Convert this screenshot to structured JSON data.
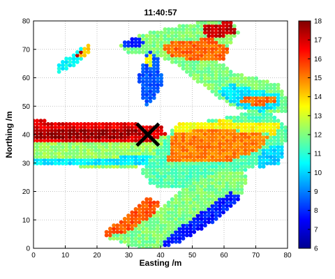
{
  "chart_data": {
    "type": "scatter",
    "title": "11:40:57",
    "xlabel": "Easting /m",
    "ylabel": "Northing /m",
    "xlim": [
      0,
      80
    ],
    "ylim": [
      0,
      80
    ],
    "xticks": [
      "0",
      "10",
      "20",
      "30",
      "40",
      "50",
      "60",
      "70",
      "80"
    ],
    "yticks": [
      "0",
      "10",
      "20",
      "30",
      "40",
      "50",
      "60",
      "70",
      "80"
    ],
    "grid": true,
    "colorbar": {
      "colormap": "jet",
      "range": [
        6,
        18
      ],
      "ticks": [
        "6",
        "7",
        "8",
        "9",
        "10",
        "11",
        "12",
        "13",
        "14",
        "15",
        "16",
        "17",
        "18"
      ]
    },
    "marker": {
      "symbol": "X",
      "x": 36,
      "y": 40,
      "color": "#000000"
    },
    "regions": [
      {
        "name": "west-channel",
        "poly": [
          [
            0,
            29.5
          ],
          [
            29,
            28
          ],
          [
            38,
            30
          ],
          [
            44,
            36
          ],
          [
            42,
            41
          ],
          [
            35,
            43
          ],
          [
            0,
            45
          ]
        ],
        "value": 12.3
      },
      {
        "name": "west-channel-red-band",
        "poly": [
          [
            0,
            37.5
          ],
          [
            36,
            37
          ],
          [
            42,
            40
          ],
          [
            40,
            43
          ],
          [
            30,
            44
          ],
          [
            0,
            45
          ]
        ],
        "value": 16.8
      },
      {
        "name": "west-channel-darkred-core",
        "poly": [
          [
            0,
            39
          ],
          [
            30,
            39
          ],
          [
            36,
            40
          ],
          [
            36,
            41
          ],
          [
            28,
            42
          ],
          [
            0,
            42
          ]
        ],
        "value": 17.7
      },
      {
        "name": "west-channel-lower-edge",
        "poly": [
          [
            0,
            29.5
          ],
          [
            38,
            29
          ],
          [
            40,
            32
          ],
          [
            38,
            32.5
          ],
          [
            0,
            31.5
          ]
        ],
        "value": 10.3
      },
      {
        "name": "junction-body",
        "poly": [
          [
            34,
            27
          ],
          [
            37,
            22
          ],
          [
            47,
            21
          ],
          [
            60,
            23
          ],
          [
            68,
            28
          ],
          [
            72,
            30
          ],
          [
            79,
            34
          ],
          [
            80,
            42
          ],
          [
            76,
            47
          ],
          [
            72,
            49
          ],
          [
            60,
            46
          ],
          [
            50,
            44
          ],
          [
            44,
            42
          ],
          [
            40,
            36
          ]
        ],
        "value": 11.5
      },
      {
        "name": "junction-orange",
        "poly": [
          [
            42,
            30
          ],
          [
            60,
            30
          ],
          [
            72,
            35
          ],
          [
            74,
            40
          ],
          [
            60,
            42
          ],
          [
            44,
            41
          ]
        ],
        "value": 15.0
      },
      {
        "name": "junction-yellow-strip",
        "poly": [
          [
            44,
            41
          ],
          [
            60,
            42
          ],
          [
            76,
            40
          ],
          [
            78,
            44
          ],
          [
            60,
            45
          ],
          [
            45,
            44
          ]
        ],
        "value": 13.5
      },
      {
        "name": "east-cyan-patch",
        "poly": [
          [
            70,
            28
          ],
          [
            78,
            30
          ],
          [
            79,
            37
          ],
          [
            72,
            35
          ]
        ],
        "value": 10.0
      },
      {
        "name": "south-arm",
        "poly": [
          [
            22,
            4
          ],
          [
            33,
            0
          ],
          [
            40,
            0
          ],
          [
            58,
            10
          ],
          [
            66,
            20
          ],
          [
            68,
            26
          ],
          [
            60,
            28
          ],
          [
            48,
            22
          ],
          [
            40,
            14
          ],
          [
            30,
            8
          ]
        ],
        "value": 12.0
      },
      {
        "name": "south-arm-outer-orange",
        "poly": [
          [
            22,
            4
          ],
          [
            30,
            6
          ],
          [
            38,
            12
          ],
          [
            40,
            16
          ],
          [
            36,
            18
          ],
          [
            28,
            10
          ],
          [
            22,
            6
          ]
        ],
        "value": 15.5
      },
      {
        "name": "south-arm-inner-blue",
        "poly": [
          [
            40,
            0
          ],
          [
            46,
            2
          ],
          [
            58,
            10
          ],
          [
            66,
            18
          ],
          [
            62,
            20
          ],
          [
            52,
            12
          ],
          [
            42,
            4
          ]
        ],
        "value": 7.8
      },
      {
        "name": "north-arm",
        "poly": [
          [
            27,
            72
          ],
          [
            36,
            76
          ],
          [
            54,
            80
          ],
          [
            62,
            80
          ],
          [
            65,
            76
          ],
          [
            62,
            72
          ],
          [
            58,
            66
          ],
          [
            63,
            62
          ],
          [
            70,
            60
          ],
          [
            77,
            58
          ],
          [
            80,
            52
          ],
          [
            80,
            48
          ],
          [
            75,
            48
          ],
          [
            68,
            48
          ],
          [
            62,
            50
          ],
          [
            56,
            55
          ],
          [
            50,
            60
          ],
          [
            46,
            64
          ],
          [
            38,
            68
          ],
          [
            30,
            68
          ]
        ],
        "value": 12.0
      },
      {
        "name": "north-arm-red-tip",
        "poly": [
          [
            53,
            78
          ],
          [
            62,
            80
          ],
          [
            64,
            76
          ],
          [
            58,
            74
          ],
          [
            54,
            75
          ]
        ],
        "value": 17.2
      },
      {
        "name": "north-arm-orange-ridge",
        "poly": [
          [
            40,
            72
          ],
          [
            56,
            74
          ],
          [
            62,
            70
          ],
          [
            60,
            66
          ],
          [
            50,
            66
          ],
          [
            42,
            68
          ]
        ],
        "value": 15.3
      },
      {
        "name": "north-arm-blue-edge",
        "poly": [
          [
            27,
            72
          ],
          [
            32,
            74
          ],
          [
            36,
            73
          ],
          [
            34,
            71
          ],
          [
            29,
            70
          ]
        ],
        "value": 8.0
      },
      {
        "name": "north-arm-lower-cyan",
        "poly": [
          [
            58,
            55
          ],
          [
            64,
            50
          ],
          [
            72,
            48
          ],
          [
            78,
            50
          ],
          [
            78,
            54
          ],
          [
            70,
            56
          ],
          [
            62,
            58
          ]
        ],
        "value": 10.2
      },
      {
        "name": "north-arm-orange-patch",
        "poly": [
          [
            64,
            52
          ],
          [
            70,
            50
          ],
          [
            76,
            51
          ],
          [
            76,
            54
          ],
          [
            70,
            54
          ]
        ],
        "value": 15.2
      },
      {
        "name": "hanging-streak",
        "poly": [
          [
            33,
            60
          ],
          [
            36,
            70
          ],
          [
            39,
            68
          ],
          [
            41,
            58
          ],
          [
            38,
            52
          ],
          [
            35,
            50
          ]
        ],
        "value": 8.5
      },
      {
        "name": "hanging-streak-yellow",
        "poly": [
          [
            35,
            67
          ],
          [
            37,
            69
          ],
          [
            38,
            64
          ],
          [
            36,
            63
          ]
        ],
        "value": 13.2
      },
      {
        "name": "small-island-nw",
        "poly": [
          [
            8,
            62
          ],
          [
            13,
            64
          ],
          [
            18,
            70
          ],
          [
            17,
            72
          ],
          [
            12,
            68
          ],
          [
            8,
            65
          ]
        ],
        "value": 10.5
      },
      {
        "name": "small-island-nw-yellow",
        "poly": [
          [
            14,
            68
          ],
          [
            17,
            72
          ],
          [
            18,
            70
          ],
          [
            16,
            67
          ]
        ],
        "value": 14.0
      },
      {
        "name": "small-island-nw-red",
        "poly": [
          [
            13,
            68
          ],
          [
            15,
            70
          ],
          [
            16,
            69
          ],
          [
            14,
            67
          ]
        ],
        "value": 17.0
      }
    ]
  }
}
